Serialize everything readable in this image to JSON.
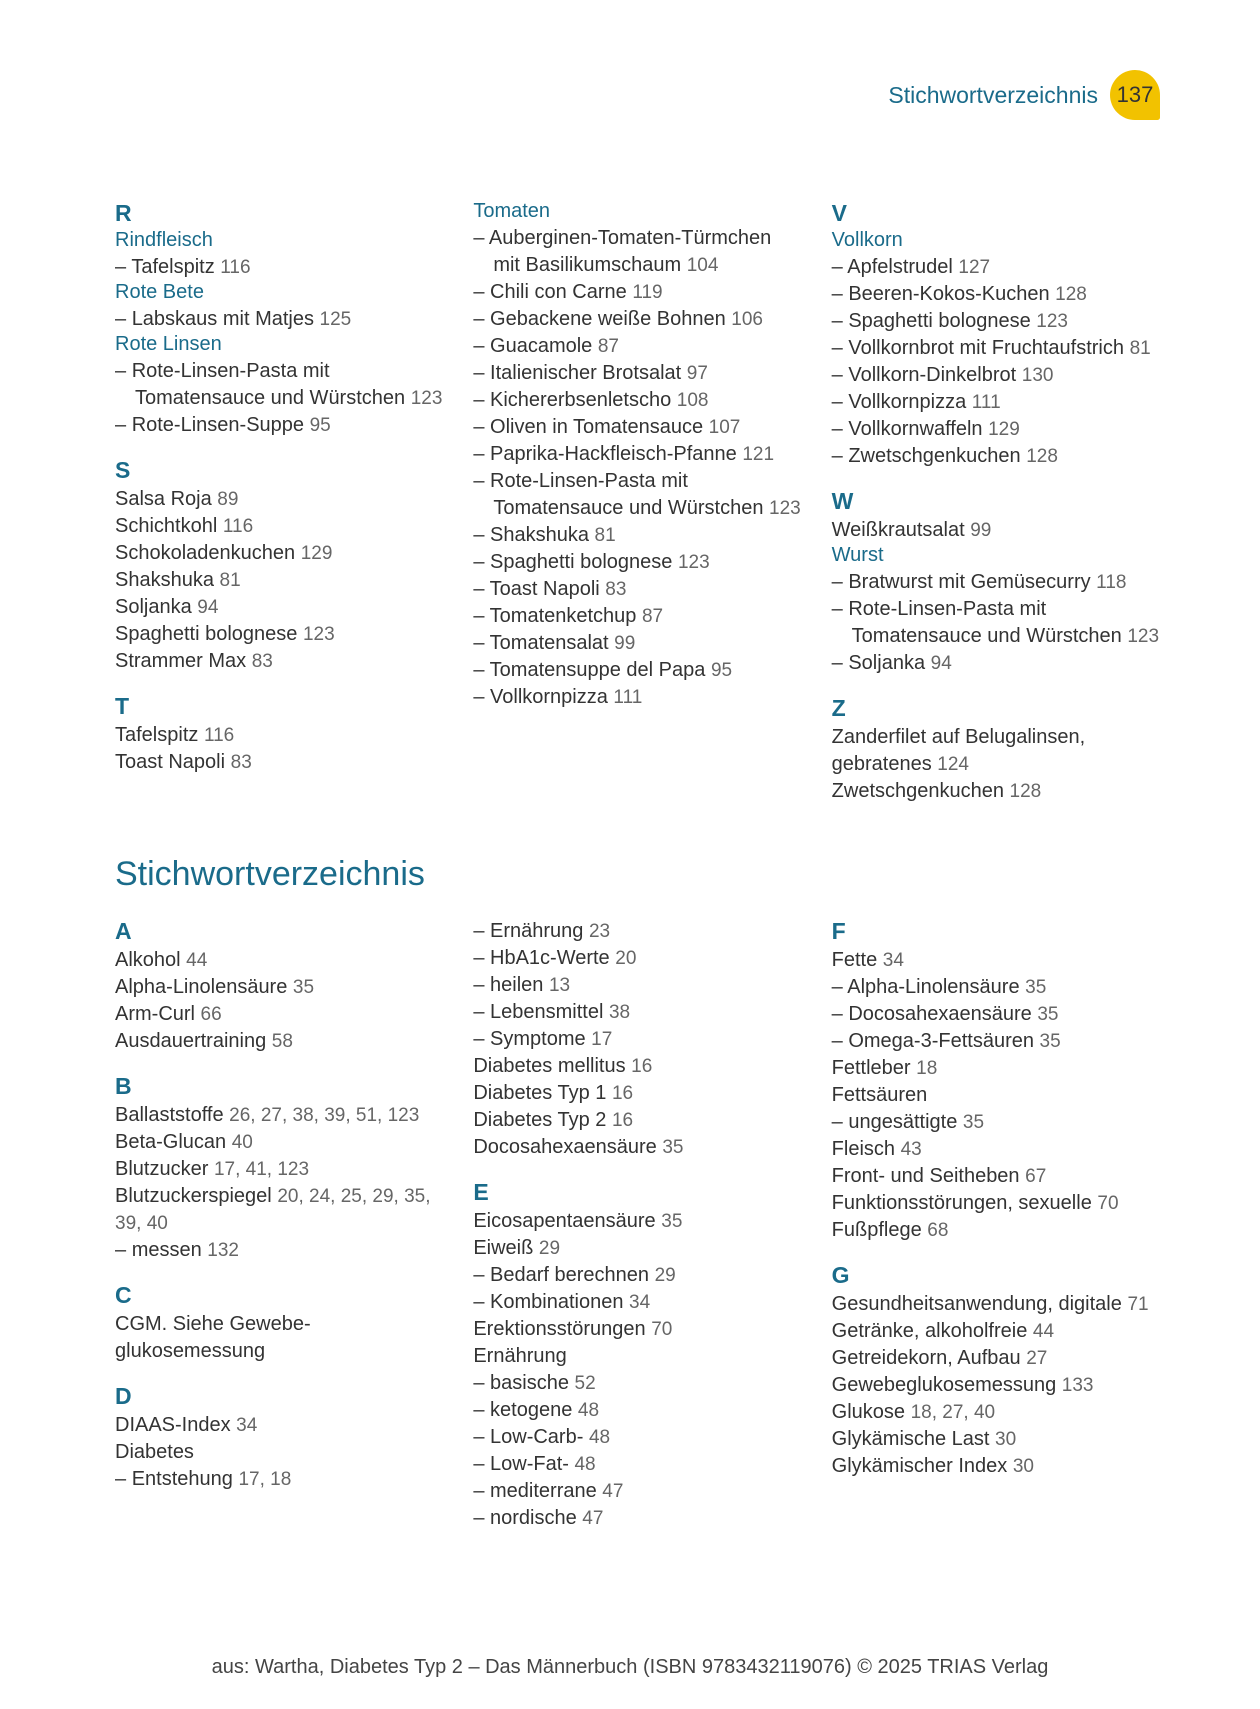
{
  "header": {
    "title": "Stichwortverzeichnis",
    "page_number": "137"
  },
  "section1": {
    "col1": [
      {
        "type": "letter",
        "text": "R"
      },
      {
        "type": "heading",
        "text": "Rindfleisch"
      },
      {
        "type": "sub",
        "text": "Tafelspitz",
        "pages": "116"
      },
      {
        "type": "heading",
        "text": "Rote Bete"
      },
      {
        "type": "sub",
        "text": "Labskaus mit Matjes",
        "pages": "125"
      },
      {
        "type": "heading",
        "text": "Rote Linsen"
      },
      {
        "type": "sub",
        "text": "Rote-Linsen-Pasta mit Tomatensauce und Würstchen",
        "pages": "123"
      },
      {
        "type": "sub",
        "text": "Rote-Linsen-Suppe",
        "pages": "95"
      },
      {
        "type": "letter",
        "text": "S"
      },
      {
        "type": "entry",
        "text": "Salsa Roja",
        "pages": "89"
      },
      {
        "type": "entry",
        "text": "Schichtkohl",
        "pages": "116"
      },
      {
        "type": "entry",
        "text": "Schokoladenkuchen",
        "pages": "129"
      },
      {
        "type": "entry",
        "text": "Shakshuka",
        "pages": "81"
      },
      {
        "type": "entry",
        "text": "Soljanka",
        "pages": "94"
      },
      {
        "type": "entry",
        "text": "Spaghetti bolognese",
        "pages": "123"
      },
      {
        "type": "entry",
        "text": "Strammer Max",
        "pages": "83"
      },
      {
        "type": "letter",
        "text": "T"
      },
      {
        "type": "entry",
        "text": "Tafelspitz",
        "pages": "116"
      },
      {
        "type": "entry",
        "text": "Toast Napoli",
        "pages": "83"
      }
    ],
    "col2": [
      {
        "type": "heading",
        "text": "Tomaten"
      },
      {
        "type": "sub",
        "text": "Auberginen-Tomaten-Türmchen mit Basilikumschaum",
        "pages": "104"
      },
      {
        "type": "sub",
        "text": "Chili con Carne",
        "pages": "119"
      },
      {
        "type": "sub",
        "text": "Gebackene weiße Bohnen",
        "pages": "106"
      },
      {
        "type": "sub",
        "text": "Guacamole",
        "pages": "87"
      },
      {
        "type": "sub",
        "text": "Italienischer Brotsalat",
        "pages": "97"
      },
      {
        "type": "sub",
        "text": "Kichererbsenletscho",
        "pages": "108"
      },
      {
        "type": "sub",
        "text": "Oliven in Tomatensauce",
        "pages": "107"
      },
      {
        "type": "sub",
        "text": "Paprika-Hackfleisch-Pfanne",
        "pages": "121"
      },
      {
        "type": "sub",
        "text": "Rote-Linsen-Pasta mit Tomatensauce und Würstchen",
        "pages": "123"
      },
      {
        "type": "sub",
        "text": "Shakshuka",
        "pages": "81"
      },
      {
        "type": "sub",
        "text": "Spaghetti bolognese",
        "pages": "123"
      },
      {
        "type": "sub",
        "text": "Toast Napoli",
        "pages": "83"
      },
      {
        "type": "sub",
        "text": "Tomatenketchup",
        "pages": "87"
      },
      {
        "type": "sub",
        "text": "Tomatensalat",
        "pages": "99"
      },
      {
        "type": "sub",
        "text": "Tomatensuppe del Papa",
        "pages": "95"
      },
      {
        "type": "sub",
        "text": "Vollkornpizza",
        "pages": "111"
      }
    ],
    "col3": [
      {
        "type": "letter",
        "text": "V"
      },
      {
        "type": "heading",
        "text": "Vollkorn"
      },
      {
        "type": "sub",
        "text": "Apfelstrudel",
        "pages": "127"
      },
      {
        "type": "sub",
        "text": "Beeren-Kokos-Kuchen",
        "pages": "128"
      },
      {
        "type": "sub",
        "text": "Spaghetti bolognese",
        "pages": "123"
      },
      {
        "type": "sub",
        "text": "Vollkornbrot mit Fruchtaufstrich",
        "pages": "81"
      },
      {
        "type": "sub",
        "text": "Vollkorn-Dinkelbrot",
        "pages": "130"
      },
      {
        "type": "sub",
        "text": "Vollkornpizza",
        "pages": "111"
      },
      {
        "type": "sub",
        "text": "Vollkornwaffeln",
        "pages": "129"
      },
      {
        "type": "sub",
        "text": "Zwetschgenkuchen",
        "pages": "128"
      },
      {
        "type": "letter",
        "text": "W"
      },
      {
        "type": "entry",
        "text": "Weißkrautsalat",
        "pages": "99"
      },
      {
        "type": "heading",
        "text": "Wurst"
      },
      {
        "type": "sub",
        "text": "Bratwurst mit Gemüsecurry",
        "pages": "118"
      },
      {
        "type": "sub",
        "text": "Rote-Linsen-Pasta mit Tomatensauce und Würstchen",
        "pages": "123"
      },
      {
        "type": "sub",
        "text": "Soljanka",
        "pages": "94"
      },
      {
        "type": "letter",
        "text": "Z"
      },
      {
        "type": "entry",
        "text": "Zanderfilet auf Belugalinsen, gebratenes",
        "pages": "124"
      },
      {
        "type": "entry",
        "text": "Zwetschgenkuchen",
        "pages": "128"
      }
    ]
  },
  "section2_title": "Stichwortverzeichnis",
  "section2": {
    "col1": [
      {
        "type": "letter",
        "text": "A"
      },
      {
        "type": "entry",
        "text": "Alkohol",
        "pages": "44"
      },
      {
        "type": "entry",
        "text": "Alpha-Linolensäure",
        "pages": "35"
      },
      {
        "type": "entry",
        "text": "Arm-Curl",
        "pages": "66"
      },
      {
        "type": "entry",
        "text": "Ausdauertraining",
        "pages": "58"
      },
      {
        "type": "letter",
        "text": "B"
      },
      {
        "type": "entry",
        "text": "Ballaststoffe",
        "pages": "26, 27, 38, 39, 51, 123"
      },
      {
        "type": "entry",
        "text": "Beta-Glucan",
        "pages": "40"
      },
      {
        "type": "entry",
        "text": "Blutzucker",
        "pages": "17, 41, 123"
      },
      {
        "type": "entry",
        "text": "Blutzuckerspiegel",
        "pages": "20, 24, 25, 29, 35, 39, 40"
      },
      {
        "type": "sub",
        "text": "messen",
        "pages": "132"
      },
      {
        "type": "letter",
        "text": "C"
      },
      {
        "type": "entry",
        "text": "CGM. Siehe Gewebe­glukosemessung",
        "pages": ""
      },
      {
        "type": "letter",
        "text": "D"
      },
      {
        "type": "entry",
        "text": "DIAAS-Index",
        "pages": "34"
      },
      {
        "type": "entry",
        "text": "Diabetes",
        "pages": ""
      },
      {
        "type": "sub",
        "text": "Entstehung",
        "pages": "17, 18"
      }
    ],
    "col2": [
      {
        "type": "sub",
        "text": "Ernährung",
        "pages": "23"
      },
      {
        "type": "sub",
        "text": "HbA1c-Werte",
        "pages": "20"
      },
      {
        "type": "sub",
        "text": "heilen",
        "pages": "13"
      },
      {
        "type": "sub",
        "text": "Lebensmittel",
        "pages": "38"
      },
      {
        "type": "sub",
        "text": "Symptome",
        "pages": "17"
      },
      {
        "type": "entry",
        "text": "Diabetes mellitus",
        "pages": "16"
      },
      {
        "type": "entry",
        "text": "Diabetes Typ 1",
        "pages": "16"
      },
      {
        "type": "entry",
        "text": "Diabetes Typ 2",
        "pages": "16"
      },
      {
        "type": "entry",
        "text": "Docosahexaensäure",
        "pages": "35"
      },
      {
        "type": "letter",
        "text": "E"
      },
      {
        "type": "entry",
        "text": "Eicosapentaensäure",
        "pages": "35"
      },
      {
        "type": "entry",
        "text": "Eiweiß",
        "pages": "29"
      },
      {
        "type": "sub",
        "text": "Bedarf berechnen",
        "pages": "29"
      },
      {
        "type": "sub",
        "text": "Kombinationen",
        "pages": "34"
      },
      {
        "type": "entry",
        "text": "Erektionsstörungen",
        "pages": "70"
      },
      {
        "type": "entry",
        "text": "Ernährung",
        "pages": ""
      },
      {
        "type": "sub",
        "text": "basische",
        "pages": "52"
      },
      {
        "type": "sub",
        "text": "ketogene",
        "pages": "48"
      },
      {
        "type": "sub",
        "text": "Low-Carb-",
        "pages": "48"
      },
      {
        "type": "sub",
        "text": "Low-Fat-",
        "pages": "48"
      },
      {
        "type": "sub",
        "text": "mediterrane",
        "pages": "47"
      },
      {
        "type": "sub",
        "text": "nordische",
        "pages": "47"
      }
    ],
    "col3": [
      {
        "type": "letter",
        "text": "F"
      },
      {
        "type": "entry",
        "text": "Fette",
        "pages": "34"
      },
      {
        "type": "sub",
        "text": "Alpha-Linolensäure",
        "pages": "35"
      },
      {
        "type": "sub",
        "text": "Docosahexaensäure",
        "pages": "35"
      },
      {
        "type": "sub",
        "text": "Omega-3-Fettsäuren",
        "pages": "35"
      },
      {
        "type": "entry",
        "text": "Fettleber",
        "pages": "18"
      },
      {
        "type": "entry",
        "text": "Fettsäuren",
        "pages": ""
      },
      {
        "type": "sub",
        "text": "ungesättigte",
        "pages": "35"
      },
      {
        "type": "entry",
        "text": "Fleisch",
        "pages": "43"
      },
      {
        "type": "entry",
        "text": "Front- und Seitheben",
        "pages": "67"
      },
      {
        "type": "entry",
        "text": "Funktionsstörungen, sexuelle",
        "pages": "70"
      },
      {
        "type": "entry",
        "text": "Fußpflege",
        "pages": "68"
      },
      {
        "type": "letter",
        "text": "G"
      },
      {
        "type": "entry",
        "text": "Gesundheitsanwendung, digitale",
        "pages": "71"
      },
      {
        "type": "entry",
        "text": "Getränke, alkoholfreie",
        "pages": "44"
      },
      {
        "type": "entry",
        "text": "Getreidekorn, Aufbau",
        "pages": "27"
      },
      {
        "type": "entry",
        "text": "Gewebeglukosemessung",
        "pages": "133"
      },
      {
        "type": "entry",
        "text": "Glukose",
        "pages": "18, 27, 40"
      },
      {
        "type": "entry",
        "text": "Glykämische Last",
        "pages": "30"
      },
      {
        "type": "entry",
        "text": "Glykämischer Index",
        "pages": "30"
      }
    ]
  },
  "footer": "aus: Wartha, Diabetes Typ 2 – Das Männerbuch (ISBN 9783432119076) © 2025 TRIAS Verlag"
}
